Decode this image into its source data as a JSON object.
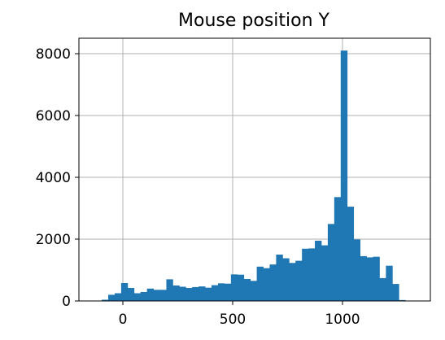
{
  "chart_data": {
    "type": "bar",
    "title": "Mouse position Y",
    "xlabel": "",
    "ylabel": "",
    "xlim": [
      -200,
      1400
    ],
    "ylim": [
      0,
      8500
    ],
    "grid": true,
    "bar_color": "#1f77b4",
    "bin_width": 29.4,
    "bin_start": -96,
    "values": [
      40,
      200,
      250,
      580,
      420,
      250,
      290,
      400,
      360,
      360,
      700,
      500,
      460,
      420,
      450,
      470,
      430,
      510,
      570,
      560,
      860,
      850,
      710,
      650,
      1110,
      1060,
      1180,
      1500,
      1380,
      1230,
      1300,
      1690,
      1700,
      1950,
      1800,
      2490,
      3360,
      8100,
      3050,
      1990,
      1450,
      1410,
      1430,
      740,
      1140,
      550,
      30
    ],
    "xticks": [
      0,
      500,
      1000
    ],
    "yticks": [
      0,
      2000,
      4000,
      6000,
      8000
    ]
  }
}
